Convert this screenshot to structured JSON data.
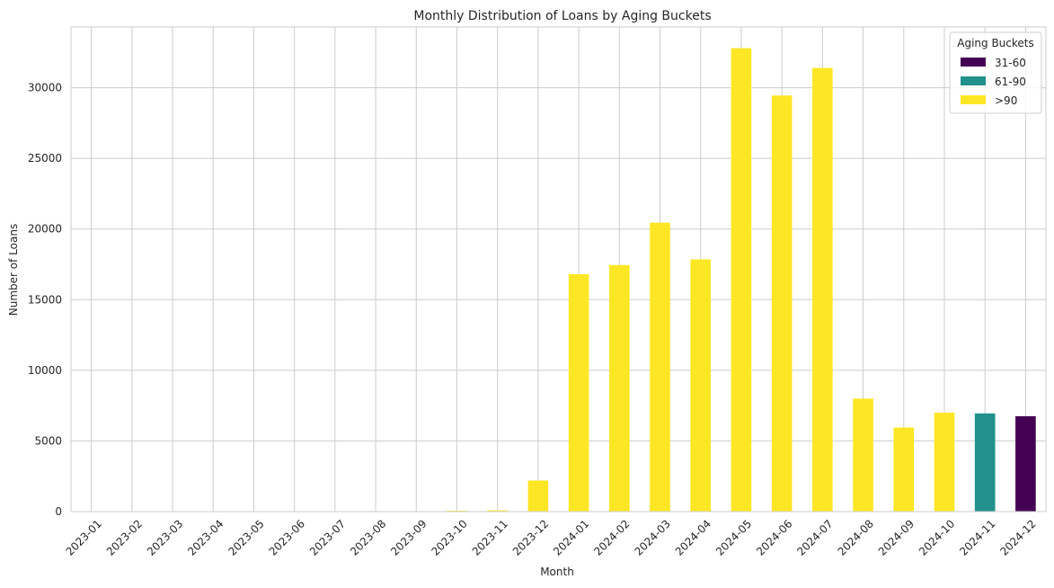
{
  "chart_data": {
    "type": "bar",
    "stacked": true,
    "title": "Monthly Distribution of Loans by Aging Buckets",
    "xlabel": "Month",
    "ylabel": "Number of Loans",
    "ylim": [
      0,
      34300
    ],
    "yticks": [
      0,
      5000,
      10000,
      15000,
      20000,
      25000,
      30000
    ],
    "grid": true,
    "legend_title": "Aging Buckets",
    "legend_position": "top-right",
    "categories": [
      "2023-01",
      "2023-02",
      "2023-03",
      "2023-04",
      "2023-05",
      "2023-06",
      "2023-07",
      "2023-08",
      "2023-09",
      "2023-10",
      "2023-11",
      "2023-12",
      "2024-01",
      "2024-02",
      "2024-03",
      "2024-04",
      "2024-05",
      "2024-06",
      "2024-07",
      "2024-08",
      "2024-09",
      "2024-10",
      "2024-11",
      "2024-12"
    ],
    "series": [
      {
        "name": "31-60",
        "color": "#440154",
        "values": [
          0,
          0,
          0,
          0,
          0,
          0,
          0,
          0,
          0,
          0,
          0,
          0,
          0,
          0,
          0,
          0,
          0,
          0,
          0,
          0,
          0,
          0,
          0,
          6750
        ]
      },
      {
        "name": "61-90",
        "color": "#21918c",
        "values": [
          0,
          0,
          0,
          0,
          0,
          0,
          0,
          0,
          0,
          0,
          0,
          0,
          0,
          0,
          0,
          0,
          0,
          0,
          0,
          0,
          0,
          0,
          6950,
          0
        ]
      },
      {
        "name": ">90",
        "color": "#fde725",
        "values": [
          5,
          5,
          5,
          5,
          5,
          5,
          5,
          10,
          15,
          60,
          90,
          2200,
          16800,
          17450,
          20450,
          17850,
          32800,
          29450,
          31400,
          8000,
          5950,
          7000,
          0,
          0
        ]
      }
    ]
  }
}
